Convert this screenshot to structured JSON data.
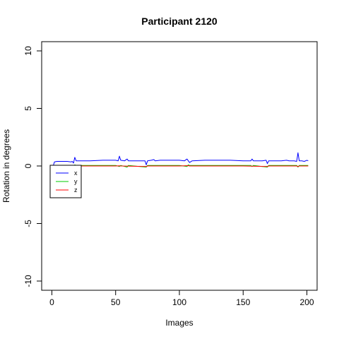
{
  "chart_data": {
    "type": "line",
    "title": "Participant 2120",
    "xlabel": "Images",
    "ylabel": "Rotation in degrees",
    "xlim": [
      -8,
      208
    ],
    "ylim": [
      -10.8,
      10.8
    ],
    "xticks": [
      0,
      50,
      100,
      150,
      200
    ],
    "yticks": [
      10,
      5,
      0,
      -5,
      -10
    ],
    "xtick_labels": [
      "0",
      "50",
      "100",
      "150",
      "200"
    ],
    "ytick_labels": [
      "10",
      "5",
      "0",
      "-5",
      "-10"
    ],
    "grid": false,
    "legend_position": "top-left",
    "series": [
      {
        "name": "x",
        "color": "#0000ff",
        "points": [
          [
            1,
            0.0
          ],
          [
            2,
            0.35
          ],
          [
            4,
            0.4
          ],
          [
            8,
            0.4
          ],
          [
            12,
            0.4
          ],
          [
            15,
            0.35
          ],
          [
            16,
            0.4
          ],
          [
            17,
            0.25
          ],
          [
            18,
            0.75
          ],
          [
            19,
            0.45
          ],
          [
            22,
            0.45
          ],
          [
            30,
            0.45
          ],
          [
            40,
            0.5
          ],
          [
            50,
            0.5
          ],
          [
            52,
            0.45
          ],
          [
            53,
            0.85
          ],
          [
            54,
            0.5
          ],
          [
            57,
            0.45
          ],
          [
            59,
            0.6
          ],
          [
            60,
            0.45
          ],
          [
            65,
            0.45
          ],
          [
            70,
            0.45
          ],
          [
            73,
            0.45
          ],
          [
            74,
            0.1
          ],
          [
            75,
            0.45
          ],
          [
            78,
            0.5
          ],
          [
            80,
            0.55
          ],
          [
            81,
            0.45
          ],
          [
            85,
            0.5
          ],
          [
            90,
            0.5
          ],
          [
            100,
            0.5
          ],
          [
            104,
            0.45
          ],
          [
            106,
            0.6
          ],
          [
            107,
            0.45
          ],
          [
            108,
            0.3
          ],
          [
            110,
            0.45
          ],
          [
            120,
            0.5
          ],
          [
            130,
            0.5
          ],
          [
            140,
            0.5
          ],
          [
            150,
            0.45
          ],
          [
            156,
            0.45
          ],
          [
            157,
            0.6
          ],
          [
            158,
            0.45
          ],
          [
            165,
            0.45
          ],
          [
            168,
            0.5
          ],
          [
            169,
            0.2
          ],
          [
            170,
            0.45
          ],
          [
            180,
            0.45
          ],
          [
            184,
            0.5
          ],
          [
            186,
            0.45
          ],
          [
            190,
            0.45
          ],
          [
            192,
            0.4
          ],
          [
            193,
            1.15
          ],
          [
            194,
            0.45
          ],
          [
            196,
            0.45
          ],
          [
            198,
            0.4
          ],
          [
            200,
            0.5
          ],
          [
            201,
            0.45
          ]
        ]
      },
      {
        "name": "y",
        "color": "#00cc00",
        "points": [
          [
            1,
            0.0
          ],
          [
            2,
            0.05
          ],
          [
            10,
            0.05
          ],
          [
            16,
            0.05
          ],
          [
            17,
            -0.05
          ],
          [
            18,
            0.1
          ],
          [
            19,
            0.05
          ],
          [
            30,
            0.05
          ],
          [
            50,
            0.05
          ],
          [
            53,
            -0.05
          ],
          [
            54,
            0.05
          ],
          [
            59,
            -0.1
          ],
          [
            60,
            0.05
          ],
          [
            74,
            -0.1
          ],
          [
            75,
            0.05
          ],
          [
            100,
            0.05
          ],
          [
            106,
            -0.05
          ],
          [
            107,
            0.1
          ],
          [
            108,
            0.05
          ],
          [
            130,
            0.05
          ],
          [
            156,
            0.05
          ],
          [
            157,
            -0.05
          ],
          [
            158,
            0.05
          ],
          [
            169,
            -0.1
          ],
          [
            170,
            0.05
          ],
          [
            192,
            0.05
          ],
          [
            193,
            -0.1
          ],
          [
            194,
            0.05
          ],
          [
            201,
            0.05
          ]
        ]
      },
      {
        "name": "z",
        "color": "#ff0000",
        "points": [
          [
            1,
            0.0
          ],
          [
            10,
            0.0
          ],
          [
            17,
            0.0
          ],
          [
            18,
            0.05
          ],
          [
            19,
            0.0
          ],
          [
            50,
            0.0
          ],
          [
            53,
            0.02
          ],
          [
            54,
            0.0
          ],
          [
            74,
            -0.05
          ],
          [
            75,
            0.0
          ],
          [
            100,
            0.0
          ],
          [
            107,
            0.03
          ],
          [
            108,
            0.0
          ],
          [
            150,
            0.0
          ],
          [
            169,
            -0.05
          ],
          [
            170,
            0.0
          ],
          [
            192,
            0.0
          ],
          [
            193,
            -0.05
          ],
          [
            194,
            0.0
          ],
          [
            201,
            0.0
          ]
        ]
      }
    ]
  }
}
